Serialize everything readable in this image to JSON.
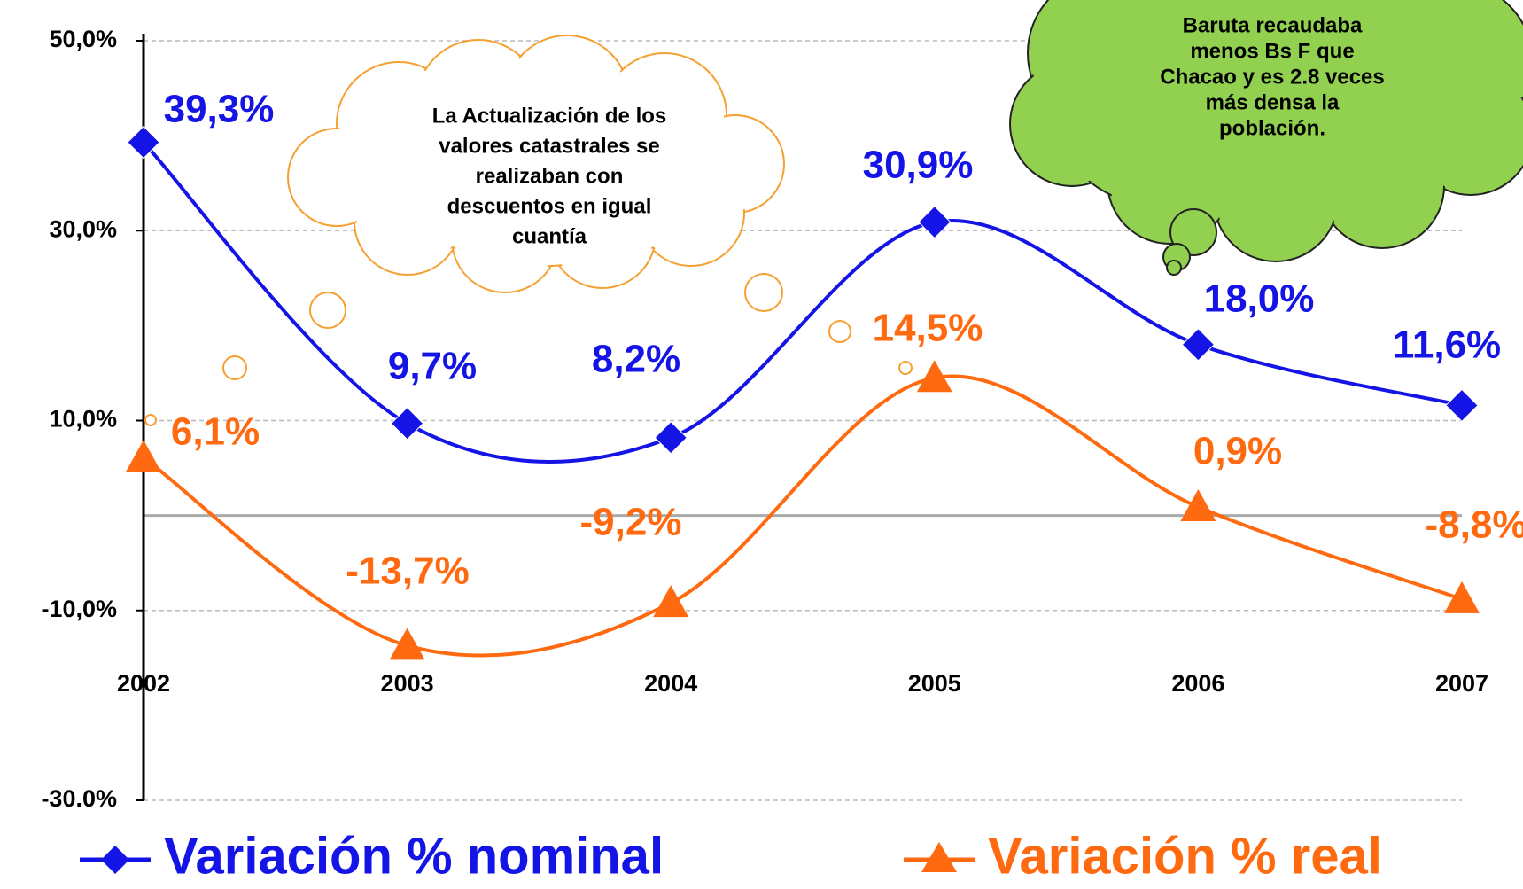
{
  "chart_data": {
    "type": "line",
    "categories": [
      "2002",
      "2003",
      "2004",
      "2005",
      "2006",
      "2007"
    ],
    "series": [
      {
        "name": "Variación % nominal",
        "color": "#1414e6",
        "marker": "diamond",
        "values": [
          39.3,
          9.7,
          8.2,
          30.9,
          18.0,
          11.6
        ],
        "value_labels": [
          "39,3%",
          "9,7%",
          "8,2%",
          "30,9%",
          "18,0%",
          "11,6%"
        ]
      },
      {
        "name": "Variación % real",
        "color": "#ff6a10",
        "marker": "triangle",
        "values": [
          6.1,
          -13.7,
          -9.2,
          14.5,
          0.9,
          -8.8
        ],
        "value_labels": [
          "6,1%",
          "-13,7%",
          "-9,2%",
          "14,5%",
          "0,9%",
          "-8,8%"
        ]
      }
    ],
    "ylim": [
      -30,
      50
    ],
    "yticks": [
      {
        "value": 50,
        "label": "50,0%"
      },
      {
        "value": 30,
        "label": "30,0%"
      },
      {
        "value": 10,
        "label": "10,0%"
      },
      {
        "value": -10,
        "label": "-10,0%"
      },
      {
        "value": -30,
        "label": "-30.0%"
      }
    ],
    "grid": true,
    "smooth": true,
    "annotations": [
      {
        "lines": [
          "La Actualización de los",
          "valores catastrales se",
          "realizaban con",
          "descuentos en igual",
          "cuantía"
        ]
      },
      {
        "lines": [
          "Baruta recaudaba",
          "menos  Bs F que",
          "Chacao y es 2.8 veces",
          "más densa la",
          "población."
        ]
      }
    ]
  }
}
